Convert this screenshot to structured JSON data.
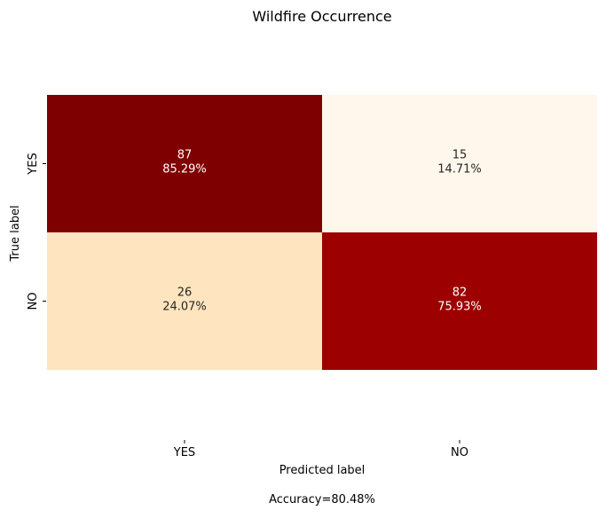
{
  "chart_data": {
    "type": "heatmap",
    "title": "Wildfire Occurrence",
    "xlabel": "Predicted label",
    "ylabel": "True label",
    "x_categories": [
      "YES",
      "NO"
    ],
    "y_categories": [
      "YES",
      "NO"
    ],
    "values": [
      [
        87,
        15
      ],
      [
        26,
        82
      ]
    ],
    "percent_labels": [
      [
        "85.29%",
        "14.71%"
      ],
      [
        "24.07%",
        "75.93%"
      ]
    ],
    "colorscale": "OrRd",
    "colorbar": false,
    "footer": "Accuracy=80.48%"
  }
}
